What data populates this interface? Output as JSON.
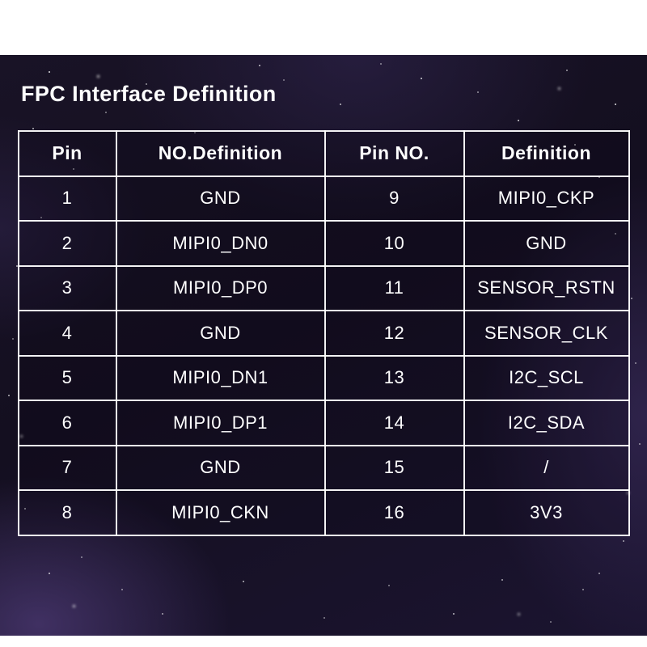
{
  "page": {
    "title": "FPC Interface Definition"
  },
  "table": {
    "headers": [
      "Pin",
      "NO.Definition",
      "Pin NO.",
      "Definition"
    ],
    "rows": [
      [
        "1",
        "GND",
        "9",
        "MIPI0_CKP"
      ],
      [
        "2",
        "MIPI0_DN0",
        "10",
        "GND"
      ],
      [
        "3",
        "MIPI0_DP0",
        "11",
        "SENSOR_RSTN"
      ],
      [
        "4",
        "GND",
        "12",
        "SENSOR_CLK"
      ],
      [
        "5",
        "MIPI0_DN1",
        "13",
        "I2C_SCL"
      ],
      [
        "6",
        "MIPI0_DP1",
        "14",
        "I2C_SDA"
      ],
      [
        "7",
        "GND",
        "15",
        "/"
      ],
      [
        "8",
        "MIPI0_CKN",
        "16",
        "3V3"
      ]
    ]
  },
  "chart_data": {
    "type": "table",
    "title": "FPC Interface Definition",
    "columns": [
      "Pin",
      "NO.Definition",
      "Pin NO.",
      "Definition"
    ],
    "rows": [
      [
        "1",
        "GND",
        "9",
        "MIPI0_CKP"
      ],
      [
        "2",
        "MIPI0_DN0",
        "10",
        "GND"
      ],
      [
        "3",
        "MIPI0_DP0",
        "11",
        "SENSOR_RSTN"
      ],
      [
        "4",
        "GND",
        "12",
        "SENSOR_CLK"
      ],
      [
        "5",
        "MIPI0_DN1",
        "13",
        "I2C_SCL"
      ],
      [
        "6",
        "MIPI0_DP1",
        "14",
        "I2C_SDA"
      ],
      [
        "7",
        "GND",
        "15",
        "/"
      ],
      [
        "8",
        "MIPI0_CKN",
        "16",
        "3V3"
      ]
    ]
  },
  "colors": {
    "background_margin": "#ffffff",
    "space_dark": "#140f20",
    "space_purple_glow": "#624a94",
    "text": "#ffffff",
    "table_border": "#ffffff"
  }
}
